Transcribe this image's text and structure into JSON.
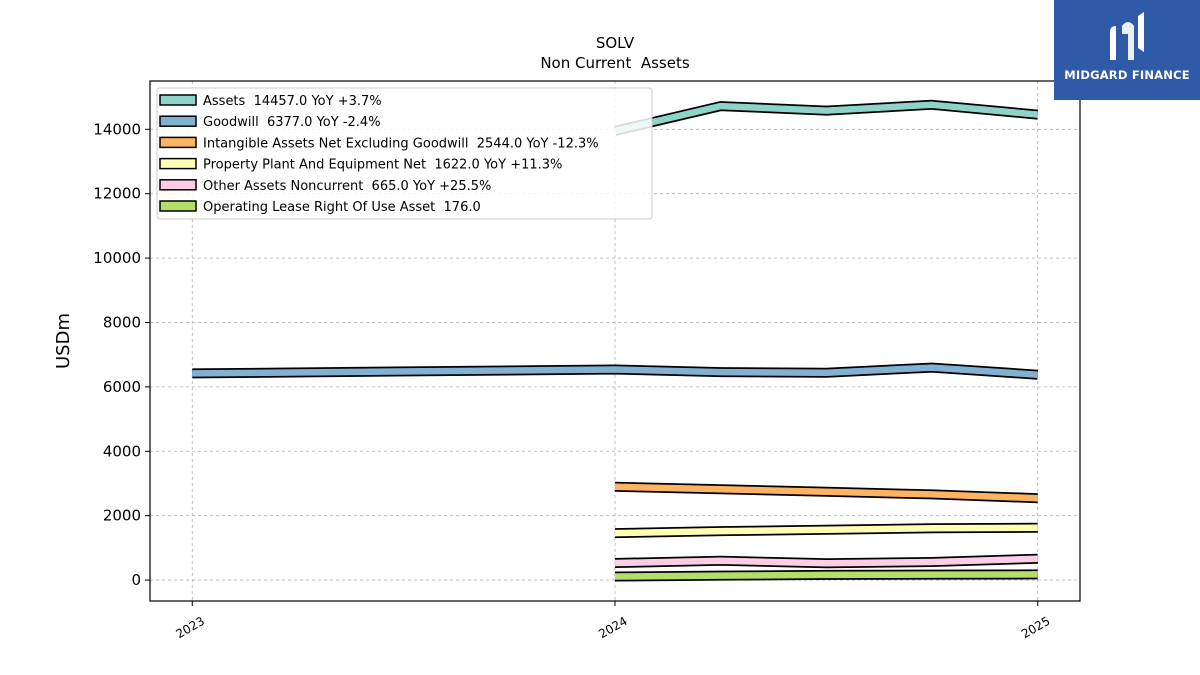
{
  "chart_data": {
    "type": "line",
    "title": "SOLV",
    "subtitle": "Non Current  Assets",
    "ylabel": "USDm",
    "xlabel": "",
    "ylim": [
      -650,
      15500
    ],
    "xlim": [
      2022.9,
      2025.1
    ],
    "yticks": [
      0,
      2000,
      4000,
      6000,
      8000,
      10000,
      12000,
      14000
    ],
    "xticks": [
      "2023",
      "2024",
      "2025"
    ],
    "grid": true,
    "legend_position": "top-left",
    "series": [
      {
        "name": "Assets",
        "legend": "Assets  14457.0 YoY +3.7%",
        "color": "#8dd3c7",
        "x": [
          2024.0,
          2024.25,
          2024.5,
          2024.75,
          2025.0
        ],
        "y": [
          13950,
          14720,
          14580,
          14760,
          14457
        ]
      },
      {
        "name": "Goodwill",
        "legend": "Goodwill  6377.0 YoY -2.4%",
        "color": "#80b1d3",
        "x": [
          2023.0,
          2024.0,
          2024.25,
          2024.5,
          2024.75,
          2025.0
        ],
        "y": [
          6420,
          6540,
          6460,
          6440,
          6600,
          6377
        ]
      },
      {
        "name": "Intangible Assets Net Excluding Goodwill",
        "legend": "Intangible Assets Net Excluding Goodwill  2544.0 YoY -12.3%",
        "color": "#fdb462",
        "x": [
          2024.0,
          2024.25,
          2024.5,
          2024.75,
          2025.0
        ],
        "y": [
          2900,
          2820,
          2740,
          2660,
          2544
        ]
      },
      {
        "name": "Property Plant And Equipment Net",
        "legend": "Property Plant And Equipment Net  1622.0 YoY +11.3%",
        "color": "#ffffb3",
        "x": [
          2024.0,
          2024.25,
          2024.5,
          2024.75,
          2025.0
        ],
        "y": [
          1460,
          1520,
          1560,
          1610,
          1622
        ]
      },
      {
        "name": "Other Assets Noncurrent",
        "legend": "Other Assets Noncurrent  665.0 YoY +25.5%",
        "color": "#fccde5",
        "x": [
          2024.0,
          2024.25,
          2024.5,
          2024.75,
          2025.0
        ],
        "y": [
          530,
          600,
          520,
          560,
          665
        ]
      },
      {
        "name": "Operating Lease Right Of Use Asset",
        "legend": "Operating Lease Right Of Use Asset  176.0",
        "color": "#b3de69",
        "x": [
          2024.0,
          2024.25,
          2024.5,
          2024.75,
          2025.0
        ],
        "y": [
          110,
          140,
          160,
          170,
          176
        ]
      }
    ]
  },
  "brand": {
    "name": "MIDGARD FINANCE",
    "bg_color": "#2f5aa8"
  }
}
